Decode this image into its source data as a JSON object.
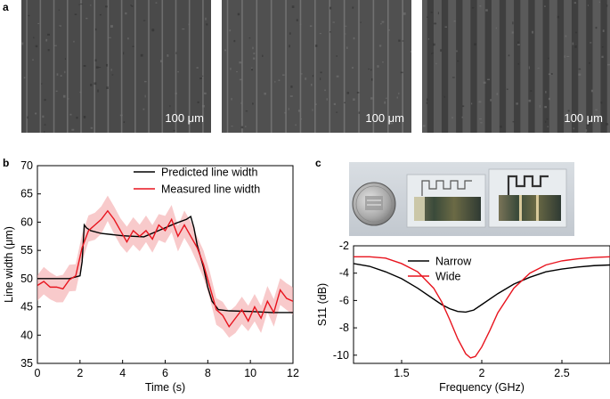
{
  "panels": {
    "a": "a",
    "b": "b",
    "c": "c"
  },
  "micrographs": [
    {
      "scale_label": "100 μm",
      "stripe_count": 14,
      "tone": "#4a4a4a"
    },
    {
      "scale_label": "100 μm",
      "stripe_count": 13,
      "tone": "#505050"
    },
    {
      "scale_label": "100 μm",
      "stripe_count": 13,
      "tone": "#5a5a5a"
    }
  ],
  "photo": {
    "description_icons": [
      "coin-icon",
      "narrow-device-icon",
      "wide-device-icon"
    ]
  },
  "chart_data": [
    {
      "type": "line",
      "panel": "b",
      "title": "",
      "xlabel": "Time (s)",
      "ylabel": "Line width (μm)",
      "xlim": [
        0,
        12
      ],
      "ylim": [
        35,
        70
      ],
      "xticks": [
        0,
        2,
        4,
        6,
        8,
        10,
        12
      ],
      "yticks": [
        35,
        40,
        45,
        50,
        55,
        60,
        65,
        70
      ],
      "legend": [
        "Predicted line width",
        "Measured line width"
      ],
      "series": [
        {
          "name": "Predicted line width",
          "color": "#000000",
          "x": [
            0,
            0.5,
            1,
            1.5,
            2,
            2.1,
            2.2,
            2.3,
            2.5,
            3,
            3.5,
            4,
            4.5,
            5,
            5.5,
            6,
            6.5,
            7,
            7.2,
            7.35,
            7.5,
            7.8,
            8,
            8.2,
            8.5,
            9,
            10,
            11,
            12
          ],
          "y": [
            50,
            50,
            50,
            50,
            50.5,
            53,
            59.5,
            59,
            58.5,
            58,
            57.8,
            57.6,
            57.5,
            57.4,
            58.2,
            59,
            59.8,
            60.5,
            61,
            59,
            56,
            52,
            48.5,
            46,
            44.5,
            44.3,
            44.2,
            44,
            44
          ]
        },
        {
          "name": "Measured line width",
          "color": "#e8141e",
          "x": [
            0,
            0.3,
            0.6,
            0.9,
            1.2,
            1.5,
            1.8,
            2.1,
            2.4,
            2.7,
            3.0,
            3.3,
            3.6,
            3.9,
            4.2,
            4.5,
            4.8,
            5.1,
            5.4,
            5.7,
            6.0,
            6.3,
            6.6,
            6.9,
            7.2,
            7.5,
            7.8,
            8.1,
            8.4,
            8.7,
            9.0,
            9.3,
            9.6,
            9.9,
            10.2,
            10.5,
            10.8,
            11.1,
            11.4,
            11.7,
            12.0
          ],
          "y": [
            48.8,
            49.5,
            48.5,
            48.5,
            48.2,
            49.8,
            50.5,
            55.5,
            58.5,
            59.5,
            60.5,
            62,
            60.5,
            58.5,
            56.5,
            58.5,
            57.5,
            58.5,
            57,
            59.5,
            58.5,
            60.5,
            57.5,
            59.5,
            57.5,
            55.5,
            52.5,
            48.5,
            44.5,
            43.5,
            41.5,
            43,
            44.5,
            42.5,
            45,
            43,
            46,
            44,
            48,
            46.5,
            46
          ],
          "band": 1.8
        }
      ]
    },
    {
      "type": "line",
      "panel": "c",
      "title": "",
      "xlabel": "Frequency (GHz)",
      "ylabel": "S11 (dB)",
      "xlim": [
        1.2,
        2.8
      ],
      "ylim": [
        -10.6,
        -2
      ],
      "xticks": [
        1.5,
        2.0,
        2.5
      ],
      "xtick_labels": [
        "1.5",
        "2",
        "2.5"
      ],
      "yticks": [
        -10,
        -8,
        -6,
        -4,
        -2
      ],
      "legend": [
        "Narrow",
        "Wide"
      ],
      "series": [
        {
          "name": "Narrow",
          "color": "#000000",
          "x": [
            1.2,
            1.3,
            1.4,
            1.5,
            1.6,
            1.7,
            1.75,
            1.8,
            1.85,
            1.9,
            1.95,
            2.0,
            2.1,
            2.2,
            2.3,
            2.4,
            2.5,
            2.6,
            2.7,
            2.8
          ],
          "y": [
            -3.3,
            -3.5,
            -3.9,
            -4.4,
            -5.1,
            -5.9,
            -6.3,
            -6.6,
            -6.8,
            -6.85,
            -6.7,
            -6.3,
            -5.5,
            -4.8,
            -4.3,
            -3.9,
            -3.7,
            -3.55,
            -3.45,
            -3.4
          ]
        },
        {
          "name": "Wide",
          "color": "#e8141e",
          "x": [
            1.2,
            1.3,
            1.4,
            1.5,
            1.6,
            1.7,
            1.75,
            1.8,
            1.85,
            1.9,
            1.93,
            1.96,
            2.0,
            2.05,
            2.1,
            2.2,
            2.3,
            2.4,
            2.5,
            2.6,
            2.7,
            2.8
          ],
          "y": [
            -2.8,
            -2.8,
            -2.9,
            -3.3,
            -3.9,
            -5.1,
            -6.1,
            -7.4,
            -8.8,
            -9.9,
            -10.2,
            -10.1,
            -9.4,
            -8.2,
            -6.9,
            -5.1,
            -4.0,
            -3.4,
            -3.1,
            -2.95,
            -2.85,
            -2.8
          ]
        }
      ]
    }
  ]
}
